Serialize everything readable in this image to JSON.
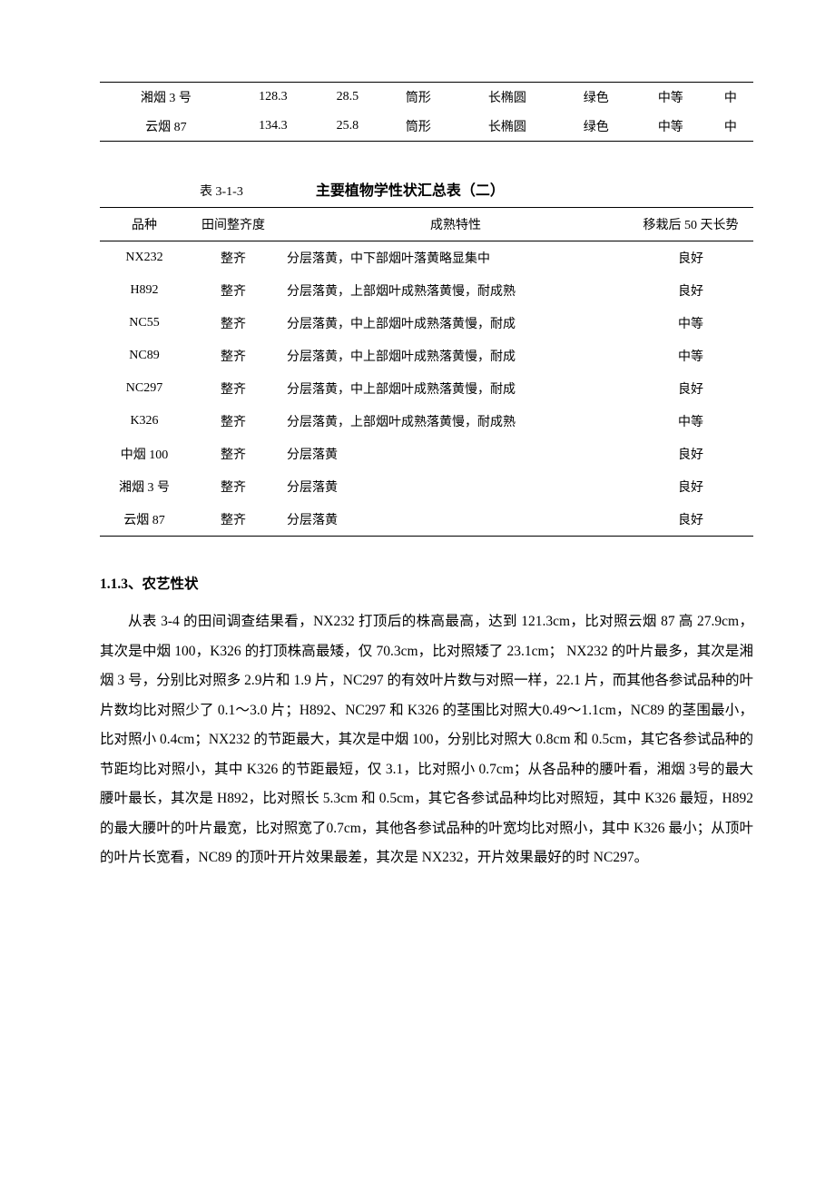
{
  "table1": {
    "rows": [
      {
        "variety": "湘烟 3 号",
        "v1": "128.3",
        "v2": "28.5",
        "shape": "筒形",
        "leaf": "长椭圆",
        "color": "绿色",
        "grade": "中等",
        "last": "中"
      },
      {
        "variety": "云烟 87",
        "v1": "134.3",
        "v2": "25.8",
        "shape": "筒形",
        "leaf": "长椭圆",
        "color": "绿色",
        "grade": "中等",
        "last": "中"
      }
    ]
  },
  "table2_caption": {
    "label": "表 3-1-3",
    "title": "主要植物学性状汇总表（二）"
  },
  "table2": {
    "headers": {
      "variety": "品种",
      "uniform": "田间整齐度",
      "mature": "成熟特性",
      "growth": "移栽后 50 天长势"
    },
    "rows": [
      {
        "variety": "NX232",
        "uniform": "整齐",
        "mature": "分层落黄，中下部烟叶落黄略显集中",
        "growth": "良好"
      },
      {
        "variety": "H892",
        "uniform": "整齐",
        "mature": "分层落黄，上部烟叶成熟落黄慢，耐成熟",
        "growth": "良好"
      },
      {
        "variety": "NC55",
        "uniform": "整齐",
        "mature": "分层落黄，中上部烟叶成熟落黄慢，耐成",
        "growth": "中等"
      },
      {
        "variety": "NC89",
        "uniform": "整齐",
        "mature": "分层落黄，中上部烟叶成熟落黄慢，耐成",
        "growth": "中等"
      },
      {
        "variety": "NC297",
        "uniform": "整齐",
        "mature": "分层落黄，中上部烟叶成熟落黄慢，耐成",
        "growth": "良好"
      },
      {
        "variety": "K326",
        "uniform": "整齐",
        "mature": "分层落黄，上部烟叶成熟落黄慢，耐成熟",
        "growth": "中等"
      },
      {
        "variety": "中烟 100",
        "uniform": "整齐",
        "mature": "分层落黄",
        "growth": "良好"
      },
      {
        "variety": "湘烟 3 号",
        "uniform": "整齐",
        "mature": "分层落黄",
        "growth": "良好"
      },
      {
        "variety": "云烟 87",
        "uniform": "整齐",
        "mature": "分层落黄",
        "growth": "良好"
      }
    ]
  },
  "section_heading": "1.1.3、农艺性状",
  "paragraph": "从表 3-4 的田间调查结果看，NX232 打顶后的株高最高，达到 121.3cm，比对照云烟 87 高 27.9cm，其次是中烟 100，K326 的打顶株高最矮，仅 70.3cm，比对照矮了 23.1cm；  NX232 的叶片最多，其次是湘烟 3 号，分别比对照多 2.9片和 1.9 片，NC297 的有效叶片数与对照一样，22.1 片，而其他各参试品种的叶片数均比对照少了 0.1～3.0 片；H892、NC297 和 K326 的茎围比对照大0.49～1.1cm，NC89 的茎围最小，比对照小 0.4cm；NX232 的节距最大，其次是中烟 100，分别比对照大 0.8cm 和 0.5cm，其它各参试品种的节距均比对照小，其中 K326 的节距最短，仅 3.1，比对照小 0.7cm；从各品种的腰叶看，湘烟 3号的最大腰叶最长，其次是 H892，比对照长 5.3cm 和 0.5cm，其它各参试品种均比对照短，其中 K326 最短，H892 的最大腰叶的叶片最宽，比对照宽了0.7cm，其他各参试品种的叶宽均比对照小，其中 K326 最小；从顶叶的叶片长宽看，NC89 的顶叶开片效果最差，其次是 NX232，开片效果最好的时 NC297。"
}
